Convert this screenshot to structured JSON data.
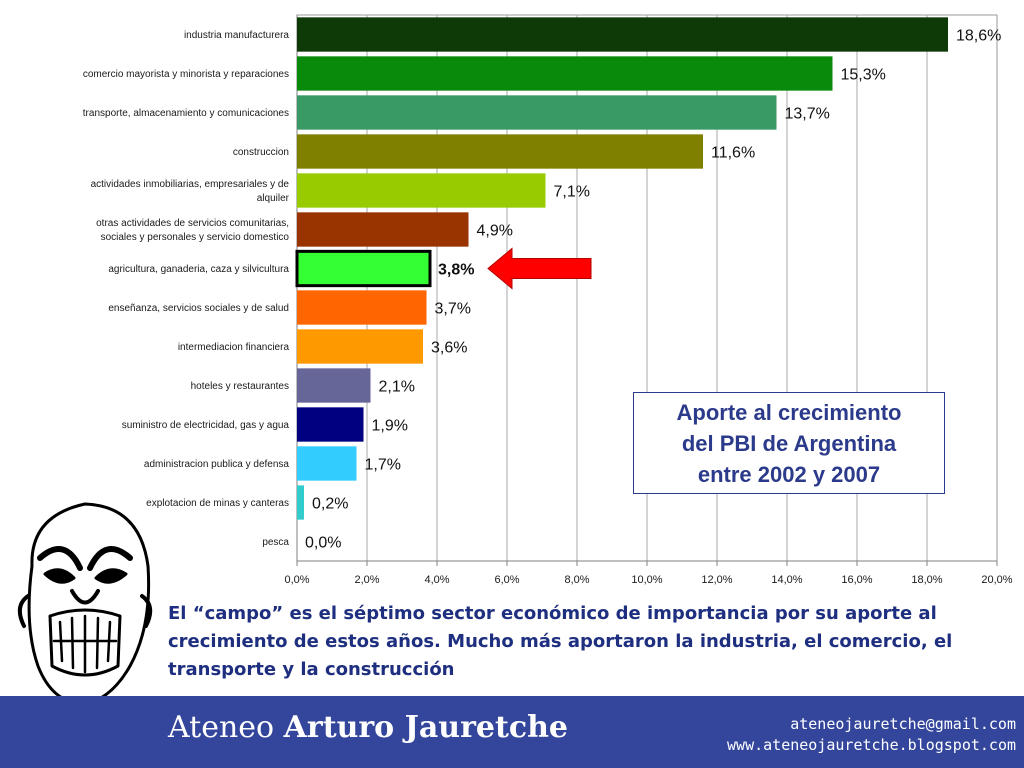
{
  "chart_data": {
    "type": "bar",
    "orientation": "horizontal",
    "categories": [
      "industria manufacturera",
      "comercio mayorista y minorista y reparaciones",
      "transporte, almacenamiento y comunicaciones",
      "construccion",
      "actividades inmobiliarias, empresariales y de alquiler",
      "otras actividades de servicios comunitarias, sociales y personales y servicio domestico",
      "agricultura, ganaderia, caza y silvicultura",
      "enseñanza, servicios sociales y de salud",
      "intermediacion financiera",
      "hoteles y restaurantes",
      "suministro de electricidad, gas y agua",
      "administracion publica y defensa",
      "explotacion de minas y canteras",
      "pesca"
    ],
    "category_lines": [
      [
        "industria manufacturera"
      ],
      [
        "comercio mayorista y minorista y reparaciones"
      ],
      [
        "transporte, almacenamiento y comunicaciones"
      ],
      [
        "construccion"
      ],
      [
        "actividades inmobiliarias, empresariales y de",
        "alquiler"
      ],
      [
        "otras actividades de servicios comunitarias,",
        "sociales y personales y servicio domestico"
      ],
      [
        "agricultura, ganaderia, caza y silvicultura"
      ],
      [
        "enseñanza, servicios sociales y de salud"
      ],
      [
        "intermediacion financiera"
      ],
      [
        "hoteles y restaurantes"
      ],
      [
        "suministro de electricidad, gas y agua"
      ],
      [
        "administracion publica y defensa"
      ],
      [
        "explotacion de minas y canteras"
      ],
      [
        "pesca"
      ]
    ],
    "values": [
      18.6,
      15.3,
      13.7,
      11.6,
      7.1,
      4.9,
      3.8,
      3.7,
      3.6,
      2.1,
      1.9,
      1.7,
      0.2,
      0.0
    ],
    "value_labels": [
      "18,6%",
      "15,3%",
      "13,7%",
      "11,6%",
      "7,1%",
      "4,9%",
      "3,8%",
      "3,7%",
      "3,6%",
      "2,1%",
      "1,9%",
      "1,7%",
      "0,2%",
      "0,0%"
    ],
    "colors": [
      "#0d3a06",
      "#0a8a0a",
      "#3a9a66",
      "#808000",
      "#99cc00",
      "#993300",
      "#33ff33",
      "#ff6600",
      "#ff9900",
      "#666699",
      "#000080",
      "#33ccff",
      "#33cccc",
      "#cccccc"
    ],
    "highlight_index": 6,
    "highlight_color": "#ff0000",
    "xlim": [
      0,
      20
    ],
    "x_ticks": [
      0,
      2,
      4,
      6,
      8,
      10,
      12,
      14,
      16,
      18,
      20
    ],
    "x_tick_labels": [
      "0,0%",
      "2,0%",
      "4,0%",
      "6,0%",
      "8,0%",
      "10,0%",
      "12,0%",
      "14,0%",
      "16,0%",
      "18,0%",
      "20,0%"
    ],
    "grid": true,
    "title": "Aporte al crecimiento\ndel PBI de Argentina\nentre 2002 y 2007"
  },
  "caption": "El “campo” es el séptimo sector económico de importancia por su aporte al crecimiento de estos años. Mucho más aportaron la industria, el comercio, el transporte y la construcción",
  "footer": {
    "org_part1": "Ateneo ",
    "org_part2": "Arturo Jauretche",
    "email": "ateneojauretche@gmail.com",
    "website": "www.ateneojauretche.blogspot.com",
    "background": "#33469c"
  }
}
